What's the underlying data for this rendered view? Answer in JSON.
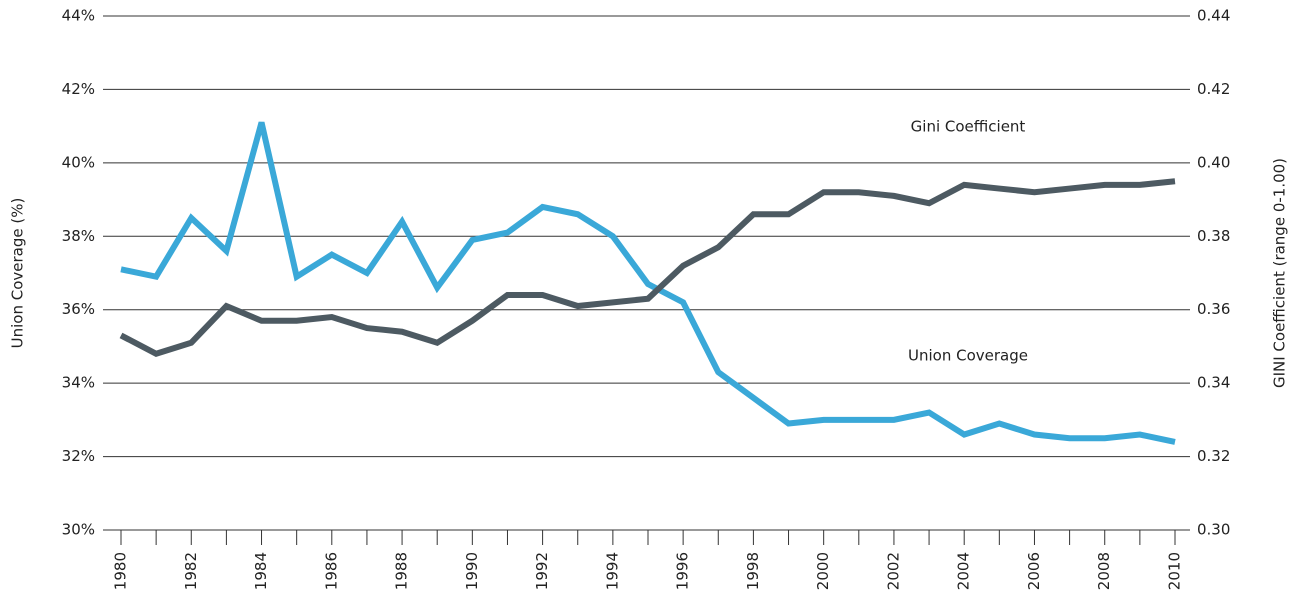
{
  "chart_data": {
    "type": "line",
    "y_label": "Union Coverage (%)",
    "y2_label": "GINI Coefficient (range 0-1.00)",
    "x": [
      1980,
      1981,
      1982,
      1983,
      1984,
      1985,
      1986,
      1987,
      1988,
      1989,
      1990,
      1991,
      1992,
      1993,
      1994,
      1995,
      1996,
      1997,
      1998,
      1999,
      2000,
      2001,
      2002,
      2003,
      2004,
      2005,
      2006,
      2007,
      2008,
      2009,
      2010
    ],
    "xlim": [
      1980,
      2010
    ],
    "xticks": [
      1980,
      1982,
      1984,
      1986,
      1988,
      1990,
      1992,
      1994,
      1996,
      1998,
      2000,
      2002,
      2004,
      2006,
      2008,
      2010
    ],
    "ylim": [
      30,
      44
    ],
    "yticks": [
      {
        "value": 30,
        "label": "30%"
      },
      {
        "value": 32,
        "label": "32%"
      },
      {
        "value": 34,
        "label": "34%"
      },
      {
        "value": 36,
        "label": "36%"
      },
      {
        "value": 38,
        "label": "38%"
      },
      {
        "value": 40,
        "label": "40%"
      },
      {
        "value": 42,
        "label": "42%"
      },
      {
        "value": 44,
        "label": "44%"
      }
    ],
    "y2lim": [
      0.3,
      0.44
    ],
    "y2ticks": [
      {
        "value": 0.3,
        "label": "0.30"
      },
      0.32,
      0.34,
      0.36,
      0.38,
      {
        "value": 0.4,
        "label": "0.40"
      },
      0.42,
      0.44
    ],
    "grid": true,
    "series": [
      {
        "name": "Union Coverage",
        "color": "#3aa8d8",
        "values": [
          37.1,
          36.9,
          38.5,
          37.6,
          41.1,
          36.9,
          37.5,
          37.0,
          38.4,
          36.6,
          37.9,
          38.1,
          38.8,
          38.6,
          38.0,
          36.7,
          36.2,
          34.3,
          33.6,
          32.9,
          33.0,
          33.0,
          33.0,
          33.2,
          32.6,
          32.9,
          32.6,
          32.5,
          32.5,
          32.6,
          32.4
        ]
      },
      {
        "name": "Gini Coefficient",
        "color": "#4d5a62",
        "axis": "y2",
        "values": [
          0.353,
          0.348,
          0.351,
          0.361,
          0.357,
          0.357,
          0.358,
          0.355,
          0.354,
          0.351,
          0.357,
          0.364,
          0.364,
          0.361,
          0.362,
          0.363,
          0.372,
          0.377,
          0.386,
          0.386,
          0.392,
          0.392,
          0.391,
          0.389,
          0.394,
          0.393,
          0.392,
          0.393,
          0.394,
          0.394,
          0.395
        ]
      }
    ]
  }
}
